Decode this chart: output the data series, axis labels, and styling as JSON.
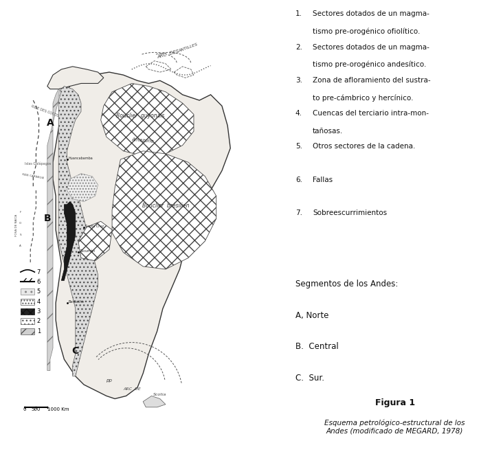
{
  "title_fig": "Figura 1",
  "caption": "Esquema petrológico-estructural de los\nAndes (modificado de MEGARD, 1978)",
  "annotation_lines": [
    "1.  Sectores dotados de un magma-",
    "    tismo pre-orogénico ofiolítico.",
    "2.  Sectores dotados de un magma-",
    "    tismo pre-orogénico andesítico.",
    "3.  Zona de afloramiento del sustra-",
    "    to pre-cámbrico y hercínico.",
    "4.  Cuencas del terciario intra-mon-",
    "    tañosas.",
    "5.  Otros sectores de la cadena.",
    "6.  Fallas",
    "7.  Sobreescurrimientos"
  ],
  "segments_header": "Segmentos de los Andes:",
  "segment_A": "A, Norte",
  "segment_B": "B.  Central",
  "segment_C": "C.  Sur.",
  "bg_color": "#ffffff",
  "land_color": "#f0ede8",
  "ocean_color": "#ffffff"
}
